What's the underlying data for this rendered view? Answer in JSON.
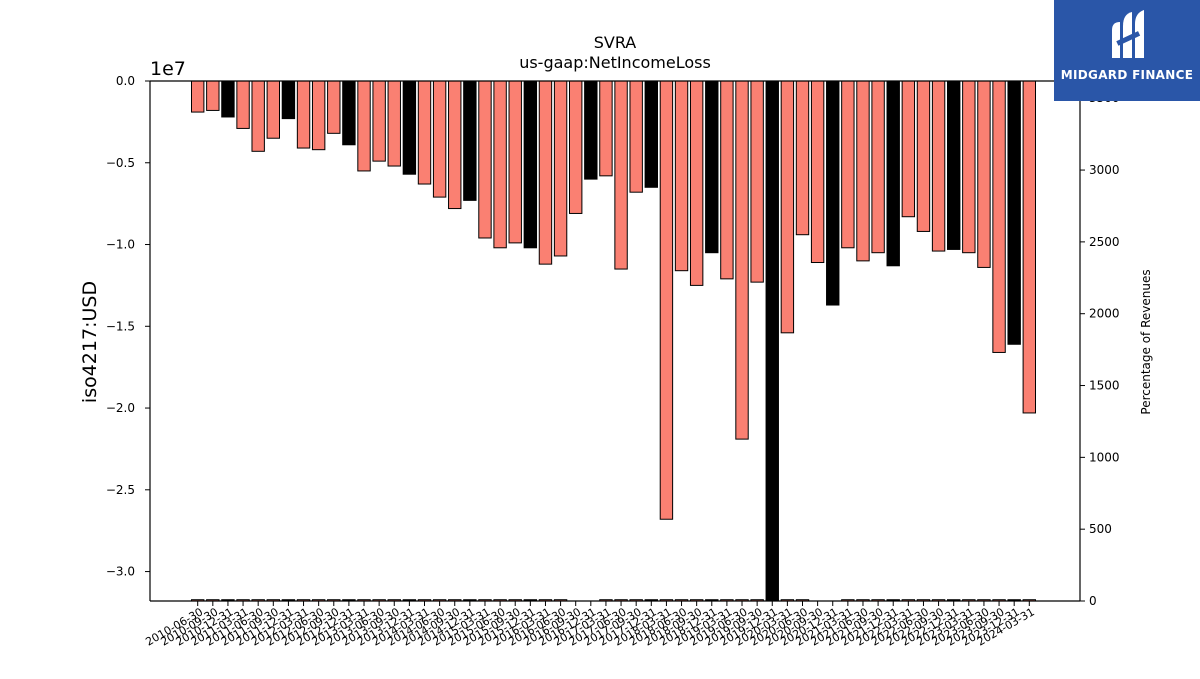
{
  "brand": {
    "name": "MIDGARD FINANCE",
    "color": "#2a56a8"
  },
  "chart_data": {
    "type": "bar",
    "title": "SVRA",
    "subtitle": "us-gaap:NetIncomeLoss",
    "ylabel": "iso4217:USD",
    "y_offset_label": "1e7",
    "y2label": "Percentage of Revenues",
    "ylim": [
      -3.18,
      0
    ],
    "y_ticks": [
      "0.0",
      "−0.5",
      "−1.0",
      "−1.5",
      "−2.0",
      "−2.5",
      "−3.0"
    ],
    "y2lim": [
      0,
      3620
    ],
    "y2_ticks": [
      "0",
      "500",
      "1000",
      "1500",
      "2000",
      "2500",
      "3000",
      "3500"
    ],
    "colors": {
      "salmon": "#fa8072",
      "black": "#000000"
    },
    "categories": [
      "2010-06-30",
      "2010-09-30",
      "2010-12-31",
      "2011-03-31",
      "2011-06-30",
      "2011-09-30",
      "2011-12-31",
      "2012-03-31",
      "2012-06-30",
      "2012-09-30",
      "2012-12-31",
      "2013-03-31",
      "2013-06-30",
      "2013-09-30",
      "2013-12-31",
      "2014-03-31",
      "2014-06-30",
      "2014-09-30",
      "2014-12-31",
      "2015-03-31",
      "2015-06-30",
      "2015-09-30",
      "2015-12-31",
      "2016-03-31",
      "2016-06-30",
      "2016-09-30",
      "2016-12-31",
      "2017-03-31",
      "2017-06-30",
      "2017-09-30",
      "2017-12-31",
      "2018-03-31",
      "2018-06-30",
      "2018-09-30",
      "2018-12-31",
      "2019-03-31",
      "2019-06-30",
      "2019-09-30",
      "2019-12-31",
      "2020-03-31",
      "2020-06-30",
      "2020-09-30",
      "2020-12-31",
      "2021-03-31",
      "2021-06-30",
      "2021-09-30",
      "2021-12-31",
      "2022-03-31",
      "2022-06-30",
      "2022-09-30",
      "2022-12-31",
      "2023-03-31",
      "2023-06-30",
      "2023-09-30",
      "2023-12-31",
      "2024-03-31"
    ],
    "series": [
      {
        "values": [
          -0.19,
          -0.18,
          -0.22,
          -0.29,
          -0.43,
          -0.35,
          -0.23,
          -0.41,
          -0.42,
          -0.32,
          -0.39,
          -0.55,
          -0.49,
          -0.52,
          -0.57,
          -0.63,
          -0.71,
          -0.78,
          -0.73,
          -0.96,
          -1.02,
          -0.99,
          -1.02,
          -1.12,
          -1.07,
          -0.81,
          -0.6,
          -0.58,
          -1.15,
          -0.68,
          -0.65,
          -2.68,
          -1.16,
          -1.25,
          -1.05,
          -1.21,
          -2.19,
          -1.23,
          -3.17,
          -1.54,
          -0.94,
          -1.11,
          -1.37,
          -1.02,
          -1.1,
          -1.05,
          -1.13,
          -0.83,
          -0.92,
          -1.04,
          -1.03,
          -1.05,
          -1.14,
          -1.66,
          -1.61,
          -2.03
        ],
        "colors": [
          "salmon",
          "salmon",
          "black",
          "salmon",
          "salmon",
          "salmon",
          "black",
          "salmon",
          "salmon",
          "salmon",
          "black",
          "salmon",
          "salmon",
          "salmon",
          "black",
          "salmon",
          "salmon",
          "salmon",
          "black",
          "salmon",
          "salmon",
          "salmon",
          "black",
          "salmon",
          "salmon",
          "salmon",
          "black",
          "salmon",
          "salmon",
          "salmon",
          "black",
          "salmon",
          "salmon",
          "salmon",
          "black",
          "salmon",
          "salmon",
          "salmon",
          "black",
          "salmon",
          "salmon",
          "salmon",
          "black",
          "salmon",
          "salmon",
          "salmon",
          "black",
          "salmon",
          "salmon",
          "salmon",
          "black",
          "salmon",
          "salmon",
          "salmon",
          "black",
          "salmon"
        ]
      },
      {
        "axis": "y2",
        "values": [
          9,
          9,
          9,
          9,
          9,
          9,
          9,
          9,
          9,
          9,
          9,
          9,
          9,
          9,
          9,
          9,
          9,
          9,
          9,
          9,
          9,
          9,
          9,
          9,
          9,
          0,
          0,
          9,
          9,
          9,
          9,
          9,
          9,
          9,
          9,
          9,
          9,
          9,
          9,
          9,
          9,
          0,
          0,
          9,
          9,
          9,
          9,
          9,
          9,
          9,
          9,
          9,
          9,
          9,
          9,
          9
        ],
        "colors": [
          "salmon",
          "salmon",
          "black",
          "salmon",
          "salmon",
          "salmon",
          "black",
          "salmon",
          "salmon",
          "salmon",
          "black",
          "salmon",
          "salmon",
          "salmon",
          "black",
          "salmon",
          "salmon",
          "salmon",
          "black",
          "salmon",
          "salmon",
          "salmon",
          "black",
          "salmon",
          "salmon",
          "salmon",
          "black",
          "salmon",
          "salmon",
          "salmon",
          "black",
          "salmon",
          "salmon",
          "salmon",
          "black",
          "salmon",
          "salmon",
          "salmon",
          "black",
          "salmon",
          "salmon",
          "salmon",
          "black",
          "salmon",
          "salmon",
          "salmon",
          "black",
          "salmon",
          "salmon",
          "salmon",
          "black",
          "salmon",
          "salmon",
          "salmon",
          "black",
          "salmon"
        ]
      }
    ]
  }
}
